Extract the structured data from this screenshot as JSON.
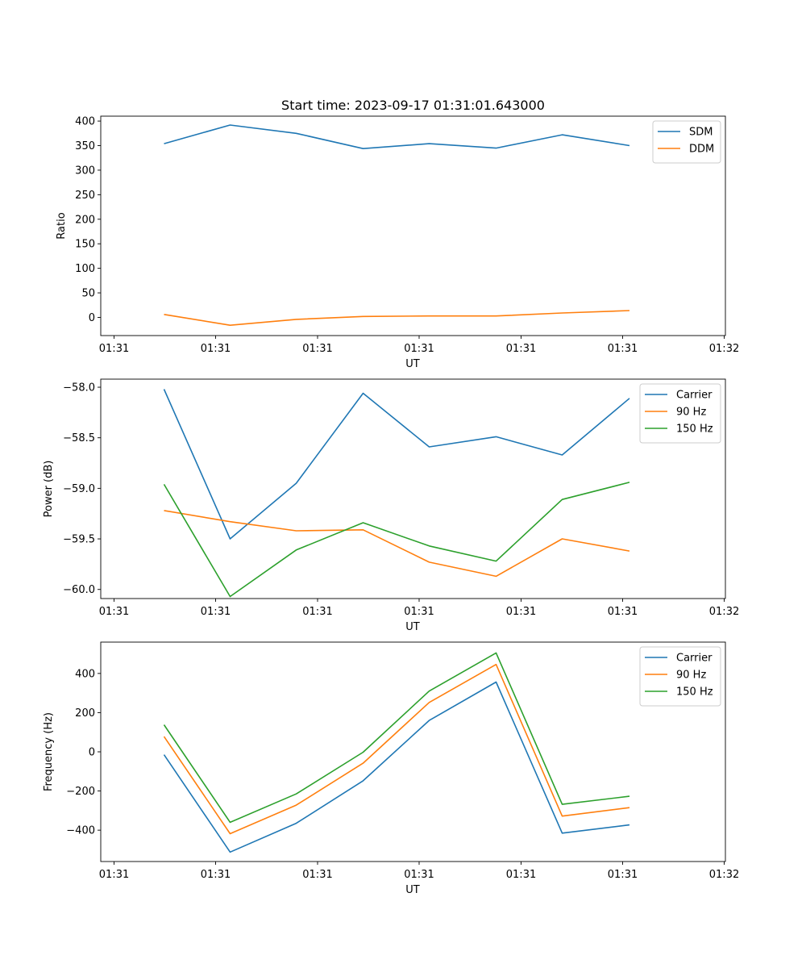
{
  "title": "Start time: 2023-09-17 01:31:01.643000",
  "colors": {
    "blue": "#1f77b4",
    "orange": "#ff7f0e",
    "green": "#2ca02c"
  },
  "chart_data": [
    {
      "type": "line",
      "title": "Start time: 2023-09-17 01:31:01.643000",
      "xlabel": "UT",
      "ylabel": "Ratio",
      "x_tick_labels": [
        "01:31",
        "01:31",
        "01:31",
        "01:31",
        "01:31",
        "01:31",
        "01:32"
      ],
      "y_ticks": [
        0,
        50,
        100,
        150,
        200,
        250,
        300,
        350,
        400
      ],
      "ylim": [
        -37,
        410
      ],
      "x": [
        1,
        2,
        3,
        4,
        5,
        6,
        7,
        8
      ],
      "legend_loc": "top-right",
      "series": [
        {
          "name": "SDM",
          "color": "#1f77b4",
          "values": [
            354,
            392,
            375,
            344,
            354,
            345,
            372,
            350
          ]
        },
        {
          "name": "DDM",
          "color": "#ff7f0e",
          "values": [
            6,
            -16,
            -4,
            2,
            3,
            3,
            9,
            14
          ]
        }
      ]
    },
    {
      "type": "line",
      "xlabel": "UT",
      "ylabel": "Power (dB)",
      "x_tick_labels": [
        "01:31",
        "01:31",
        "01:31",
        "01:31",
        "01:31",
        "01:31",
        "01:32"
      ],
      "y_ticks": [
        -60.0,
        -59.5,
        -59.0,
        -58.5,
        -58.0
      ],
      "y_tick_labels": [
        "−60.0",
        "−59.5",
        "−59.0",
        "−58.5",
        "−58.0"
      ],
      "ylim": [
        -60.09,
        -57.92
      ],
      "x": [
        1,
        2,
        3,
        4,
        5,
        6,
        7,
        8
      ],
      "legend_loc": "top-right",
      "series": [
        {
          "name": "Carrier",
          "color": "#1f77b4",
          "values": [
            -58.02,
            -59.5,
            -58.95,
            -58.06,
            -58.59,
            -58.49,
            -58.67,
            -58.11
          ]
        },
        {
          "name": "90 Hz",
          "color": "#ff7f0e",
          "values": [
            -59.22,
            -59.33,
            -59.42,
            -59.41,
            -59.73,
            -59.87,
            -59.5,
            -59.62
          ]
        },
        {
          "name": "150 Hz",
          "color": "#2ca02c",
          "values": [
            -58.96,
            -60.07,
            -59.61,
            -59.34,
            -59.57,
            -59.72,
            -59.11,
            -58.94
          ]
        }
      ]
    },
    {
      "type": "line",
      "xlabel": "UT",
      "ylabel": "Frequency (Hz)",
      "x_tick_labels": [
        "01:31",
        "01:31",
        "01:31",
        "01:31",
        "01:31",
        "01:31",
        "01:32"
      ],
      "y_ticks": [
        -400,
        -200,
        0,
        200,
        400
      ],
      "y_tick_labels": [
        "−400",
        "−200",
        "0",
        "200",
        "400"
      ],
      "ylim": [
        -560,
        560
      ],
      "x": [
        1,
        2,
        3,
        4,
        5,
        6,
        7,
        8
      ],
      "legend_loc": "top-right",
      "series": [
        {
          "name": "Carrier",
          "color": "#1f77b4",
          "values": [
            -15,
            -512,
            -365,
            -148,
            160,
            356,
            -415,
            -373
          ]
        },
        {
          "name": "90 Hz",
          "color": "#ff7f0e",
          "values": [
            78,
            -418,
            -272,
            -58,
            252,
            446,
            -328,
            -285
          ]
        },
        {
          "name": "150 Hz",
          "color": "#2ca02c",
          "values": [
            138,
            -360,
            -215,
            -2,
            310,
            505,
            -268,
            -227
          ]
        }
      ]
    }
  ]
}
